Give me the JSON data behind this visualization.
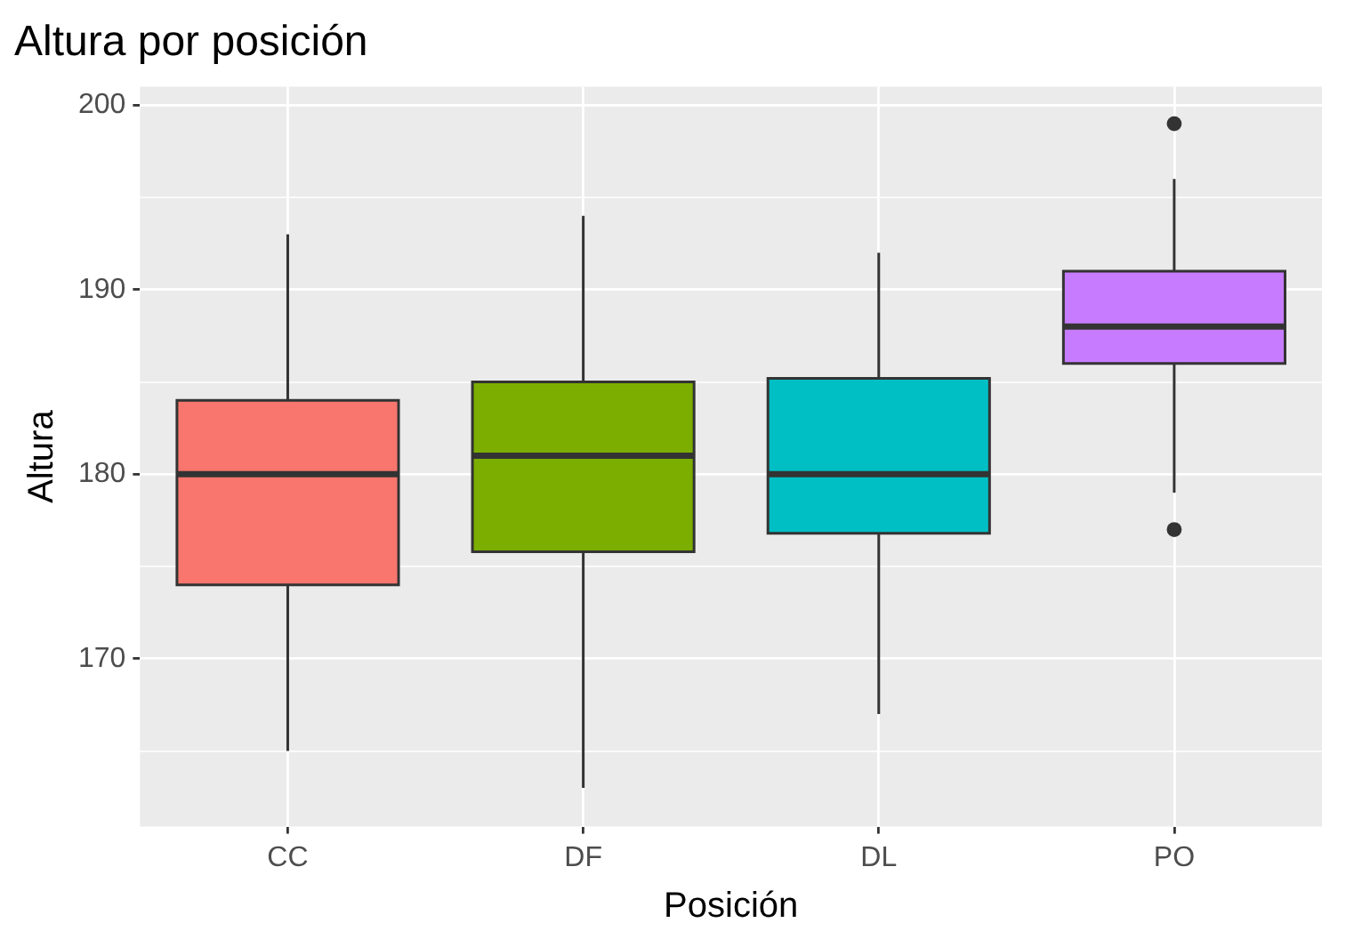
{
  "chart_data": {
    "type": "box",
    "title": "Altura por posición",
    "xlabel": "Posición",
    "ylabel": "Altura",
    "categories": [
      "CC",
      "DF",
      "DL",
      "PO"
    ],
    "colors": [
      "#f8766d",
      "#7cae00",
      "#00bfc4",
      "#c77cff"
    ],
    "boxes": [
      {
        "low": 165,
        "q1": 174,
        "median": 180,
        "q3": 184,
        "high": 193
      },
      {
        "low": 163,
        "q1": 175.8,
        "median": 181,
        "q3": 185,
        "high": 194
      },
      {
        "low": 167,
        "q1": 176.8,
        "median": 180,
        "q3": 185.2,
        "high": 192
      },
      {
        "low": 179,
        "q1": 186,
        "median": 188,
        "q3": 191,
        "high": 196,
        "outliers": [
          199,
          177
        ]
      }
    ],
    "ylim": [
      160.9,
      201
    ],
    "yticks": [
      {
        "value": 165,
        "label": null
      },
      170,
      {
        "value": 175,
        "label": null
      },
      180,
      {
        "value": 185,
        "label": null
      },
      190,
      {
        "value": 195,
        "label": null
      },
      200
    ],
    "grid": true
  }
}
